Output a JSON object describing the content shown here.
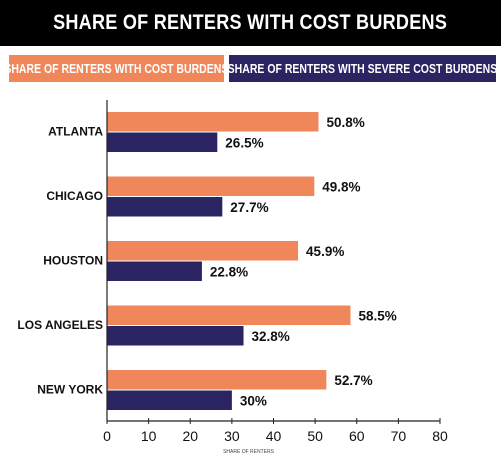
{
  "chart_data": {
    "type": "bar",
    "orientation": "horizontal",
    "title": "SHARE OF RENTERS WITH COST BURDENS",
    "categories": [
      "ATLANTA",
      "CHICAGO",
      "HOUSTON",
      "LOS ANGELES",
      "NEW YORK"
    ],
    "series": [
      {
        "name": "SHARE OF RENTERS WITH COST BURDENS",
        "values": [
          50.8,
          49.8,
          45.9,
          58.5,
          52.7
        ],
        "labels": [
          "50.8%",
          "49.8%",
          "45.9%",
          "58.5%",
          "52.7%"
        ],
        "color": "#f0875a"
      },
      {
        "name": "SHARE OF RENTERS WITH SEVERE COST BURDENS",
        "values": [
          26.5,
          27.7,
          22.8,
          32.8,
          30
        ],
        "labels": [
          "26.5%",
          "27.7%",
          "22.8%",
          "32.8%",
          "30%"
        ],
        "color": "#2b2463"
      }
    ],
    "xlabel": "SHARE OF RENTERS",
    "ylabel": "",
    "xlim": [
      0,
      80
    ],
    "xticks": [
      "0",
      "10",
      "20",
      "30",
      "40",
      "50",
      "60",
      "70",
      "80"
    ],
    "legend_position": "top",
    "grid": false
  }
}
